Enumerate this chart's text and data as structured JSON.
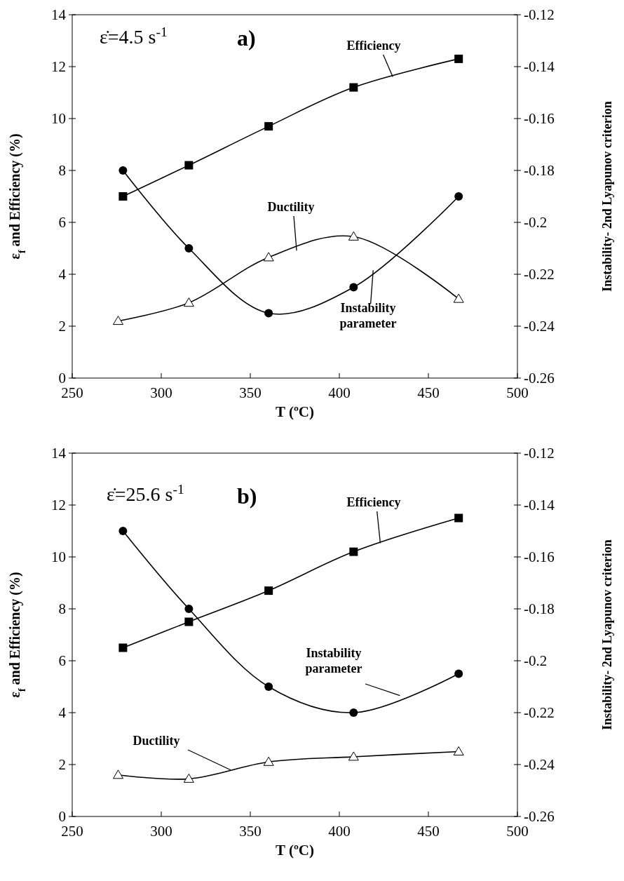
{
  "chart_data": [
    {
      "type": "line",
      "xlabel": "T (ºC)",
      "ylabel": "ε$_{f}$ and Efficiency (%)",
      "y2label": "Instability- 2nd Lyapunov criterion",
      "annotations": [
        "ε̇=4.5 s$^{-1}$",
        "a)"
      ],
      "xlim": [
        250,
        500
      ],
      "xticks": [
        250,
        300,
        350,
        400,
        450,
        500
      ],
      "ylim": [
        0,
        14
      ],
      "yticks": [
        0,
        2,
        4,
        6,
        8,
        10,
        12,
        14
      ],
      "y2lim": [
        -0.26,
        -0.12
      ],
      "y2ticks": [
        -0.26,
        -0.24,
        -0.22,
        -0.2,
        -0.18,
        -0.16,
        -0.14,
        -0.12
      ],
      "grid": false,
      "series": [
        {
          "name": "Efficiency",
          "color": "#000000",
          "marker": "square",
          "x": [
            278.5,
            315.5,
            360.3,
            408,
            467
          ],
          "values": [
            7.0,
            8.2,
            9.7,
            11.2,
            12.3
          ]
        },
        {
          "name": "Ductility",
          "color": "#000000",
          "marker": "triangle",
          "x": [
            275.8,
            315.5,
            360.3,
            408,
            467
          ],
          "values": [
            2.2,
            2.9,
            4.65,
            5.45,
            3.05
          ]
        },
        {
          "name": "Instability parameter",
          "color": "#000000",
          "marker": "circle",
          "axis": "y2",
          "x": [
            278.5,
            315.5,
            360.3,
            408,
            467
          ],
          "values": [
            -0.18,
            -0.21,
            -0.235,
            -0.225,
            -0.19
          ]
        }
      ]
    },
    {
      "type": "line",
      "xlabel": "T (ºC)",
      "ylabel": "ε$_{f}$ and Efficiency (%)",
      "y2label": "Instability- 2nd Lyapunov criterion",
      "annotations": [
        "ε̇=25.6 s$^{-1}$",
        "b)"
      ],
      "xlim": [
        250,
        500
      ],
      "xticks": [
        250,
        300,
        350,
        400,
        450,
        500
      ],
      "ylim": [
        0,
        14
      ],
      "yticks": [
        0,
        2,
        4,
        6,
        8,
        10,
        12,
        14
      ],
      "y2lim": [
        -0.26,
        -0.12
      ],
      "y2ticks": [
        -0.26,
        -0.24,
        -0.22,
        -0.2,
        -0.18,
        -0.16,
        -0.14,
        -0.12
      ],
      "grid": false,
      "series": [
        {
          "name": "Efficiency",
          "color": "#000000",
          "marker": "square",
          "x": [
            278.5,
            315.5,
            360.3,
            408,
            467
          ],
          "values": [
            6.5,
            7.5,
            8.7,
            10.2,
            11.5
          ]
        },
        {
          "name": "Instability parameter",
          "color": "#000000",
          "marker": "circle",
          "axis": "y2",
          "x": [
            278.5,
            315.5,
            360.3,
            408,
            467
          ],
          "values": [
            -0.15,
            -0.18,
            -0.21,
            -0.22,
            -0.205
          ]
        },
        {
          "name": "Ductility",
          "color": "#000000",
          "marker": "triangle",
          "x": [
            275.8,
            315.5,
            360.3,
            408,
            467
          ],
          "values": [
            1.6,
            1.45,
            2.1,
            2.3,
            2.5
          ]
        }
      ]
    }
  ]
}
